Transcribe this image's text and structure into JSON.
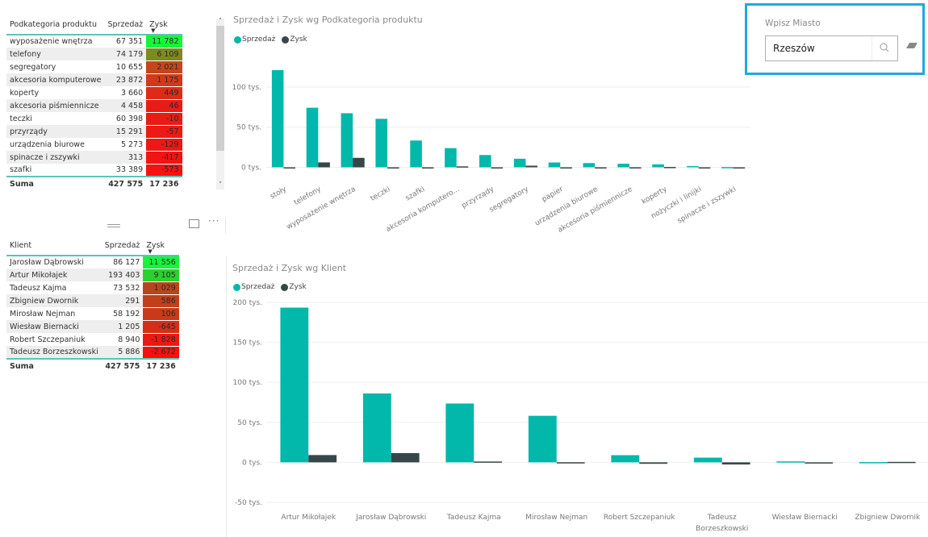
{
  "colors": {
    "sales": "#01b8aa",
    "profit": "#374649",
    "accent_border": "#5bc4b8",
    "slicer_border": "#1fa8e0"
  },
  "table_subcategory": {
    "headers": {
      "category": "Podkategoria produktu",
      "sales": "Sprzedaż",
      "profit": "Zysk"
    },
    "rows": [
      {
        "label": "wyposażenie wnętrza",
        "sales": "67 351",
        "profit": "11 782",
        "color": "#17f53a"
      },
      {
        "label": "telefony",
        "sales": "74 179",
        "profit": "6 109",
        "color": "#7f8a1e"
      },
      {
        "label": "segregatory",
        "sales": "10 655",
        "profit": "2 021",
        "color": "#c4461c"
      },
      {
        "label": "akcesoria komputerowe",
        "sales": "23 872",
        "profit": "1 175",
        "color": "#d2391b"
      },
      {
        "label": "koperty",
        "sales": "3 660",
        "profit": "449",
        "color": "#e02a18"
      },
      {
        "label": "akcesoria piśmiennicze",
        "sales": "4 458",
        "profit": "46",
        "color": "#e81c17"
      },
      {
        "label": "teczki",
        "sales": "60 398",
        "profit": "-10",
        "color": "#e91b17"
      },
      {
        "label": "przyrządy",
        "sales": "15 291",
        "profit": "-57",
        "color": "#ec1916"
      },
      {
        "label": "urządzenia biurowe",
        "sales": "5 273",
        "profit": "-129",
        "color": "#ee1715"
      },
      {
        "label": "spinacze i zszywki",
        "sales": "313",
        "profit": "-417",
        "color": "#f21412"
      },
      {
        "label": "szafki",
        "sales": "33 389",
        "profit": "-573",
        "color": "#f61210"
      }
    ],
    "total": {
      "label": "Suma",
      "sales": "427 575",
      "profit": "17 236"
    }
  },
  "table_client": {
    "headers": {
      "category": "Klient",
      "sales": "Sprzedaż",
      "profit": "Zysk"
    },
    "rows": [
      {
        "label": "Jarosław Dąbrowski",
        "sales": "86 127",
        "profit": "11 556",
        "color": "#17f53a"
      },
      {
        "label": "Artur Mikołajek",
        "sales": "193 403",
        "profit": "9 105",
        "color": "#2ad12f"
      },
      {
        "label": "Tadeusz Kajma",
        "sales": "73 532",
        "profit": "1 029",
        "color": "#b8461c"
      },
      {
        "label": "Zbigniew Dwornik",
        "sales": "291",
        "profit": "586",
        "color": "#c1401b"
      },
      {
        "label": "Mirosław Nejman",
        "sales": "58 192",
        "profit": "106",
        "color": "#c93a1a"
      },
      {
        "label": "Wiesław Biernacki",
        "sales": "1 205",
        "profit": "-645",
        "color": "#d52e18"
      },
      {
        "label": "Robert Szczepaniuk",
        "sales": "8 940",
        "profit": "-1 828",
        "color": "#ec1913"
      },
      {
        "label": "Tadeusz Borzeszkowski",
        "sales": "5 886",
        "profit": "-2 672",
        "color": "#fb0e0e"
      }
    ],
    "total": {
      "label": "Suma",
      "sales": "427 575",
      "profit": "17 236"
    }
  },
  "visual_header": {
    "focus_icon": "focus-mode-icon",
    "more_icon": "more-options-icon",
    "more_label": "···"
  },
  "scrollbar": {
    "up": "˄",
    "down": "˅"
  },
  "slicer": {
    "label": "Wpisz Miasto",
    "value": "Rzeszów",
    "search_icon": "search-icon",
    "clear_icon": "eraser-icon"
  },
  "chart_data": [
    {
      "type": "bar",
      "title": "Sprzedaż i Zysk wg Podkategoria produktu",
      "legend": [
        "Sprzedaż",
        "Zysk"
      ],
      "legend_position": "top-left",
      "categories": [
        "stoły",
        "telefony",
        "wyposażenie wnętrza",
        "teczki",
        "szafki",
        "akcesoria komputero...",
        "przyrządy",
        "segregatory",
        "papier",
        "urządzenia biurowe",
        "akcesoria piśmiennicze",
        "koperty",
        "nożyczki i linijki",
        "spinacze i zszywki"
      ],
      "series": [
        {
          "name": "Sprzedaż",
          "values": [
            121000,
            74179,
            67351,
            60398,
            33389,
            23872,
            15291,
            10655,
            6000,
            5273,
            4458,
            3660,
            1500,
            313
          ]
        },
        {
          "name": "Zysk",
          "values": [
            -1000,
            6109,
            11782,
            -10,
            -573,
            1175,
            -57,
            2021,
            -600,
            -129,
            46,
            449,
            -600,
            -417
          ]
        }
      ],
      "yticks": [
        "0 tys.",
        "50 tys.",
        "100 tys."
      ],
      "ytick_values": [
        0,
        50000,
        100000
      ],
      "ylim": [
        0,
        125000
      ],
      "grid": true,
      "xlabel_rotation": "diagonal"
    },
    {
      "type": "bar",
      "title": "Sprzedaż i Zysk wg Klient",
      "legend": [
        "Sprzedaż",
        "Zysk"
      ],
      "legend_position": "top-left",
      "categories": [
        "Artur Mikołajek",
        "Jarosław Dąbrowski",
        "Tadeusz Kajma",
        "Mirosław Nejman",
        "Robert Szczepaniuk",
        "Tadeusz Borzeszkowski",
        "Wiesław Biernacki",
        "Zbigniew Dwornik"
      ],
      "series": [
        {
          "name": "Sprzedaż",
          "values": [
            193403,
            86127,
            73532,
            58192,
            8940,
            5886,
            1205,
            291
          ]
        },
        {
          "name": "Zysk",
          "values": [
            9105,
            11556,
            1029,
            106,
            -1828,
            -2672,
            -645,
            586
          ]
        }
      ],
      "yticks": [
        "-50 tys.",
        "0 tys.",
        "50 tys.",
        "100 tys.",
        "150 tys.",
        "200 tys."
      ],
      "ytick_values": [
        -50000,
        0,
        50000,
        100000,
        150000,
        200000
      ],
      "ylim": [
        -50000,
        200000
      ],
      "grid": true
    }
  ]
}
